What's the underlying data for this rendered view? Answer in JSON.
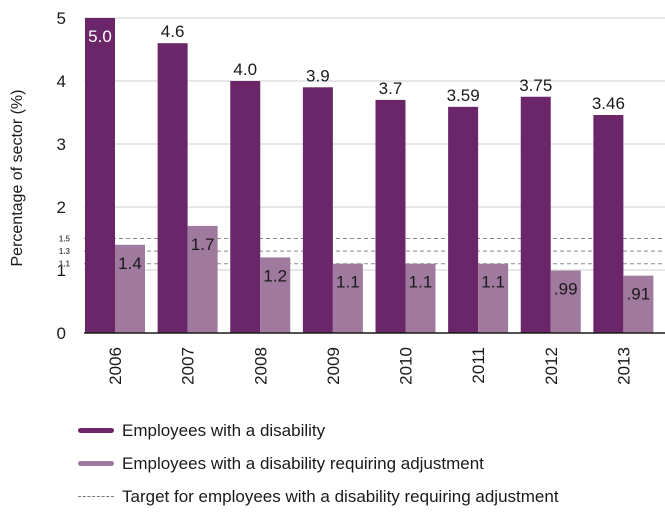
{
  "chart_data": {
    "type": "bar",
    "title": "",
    "xlabel": "",
    "ylabel": "Percentage of sector (%)",
    "ylim": [
      0,
      5
    ],
    "yticks": [
      "0",
      "1",
      "2",
      "3",
      "4",
      "5"
    ],
    "categories": [
      "2006",
      "2007",
      "2008",
      "2009",
      "2010",
      "2011",
      "2012",
      "2013"
    ],
    "series": [
      {
        "name": "Employees with a disability",
        "color": "#6b2569",
        "values": [
          5.0,
          4.6,
          4.0,
          3.9,
          3.7,
          3.59,
          3.75,
          3.46
        ],
        "labels": [
          "5.0",
          "4.6",
          "4.0",
          "3.9",
          "3.7",
          "3.59",
          "3.75",
          "3.46"
        ]
      },
      {
        "name": "Employees with a disability requiring adjustment",
        "color": "#a0799e",
        "values": [
          1.4,
          1.7,
          1.2,
          1.1,
          1.1,
          1.1,
          0.99,
          0.91
        ],
        "labels": [
          "1.4",
          "1.7",
          "1.2",
          "1.1",
          "1.1",
          "1.1",
          ".99",
          ".91"
        ]
      }
    ],
    "target_lines": {
      "name": "Target for employees with a disability requiring adjustment",
      "values": [
        1.5,
        1.3,
        1.1
      ],
      "labels": [
        "1.5",
        "1.3",
        "1.1"
      ]
    },
    "grid": "horizontal"
  }
}
